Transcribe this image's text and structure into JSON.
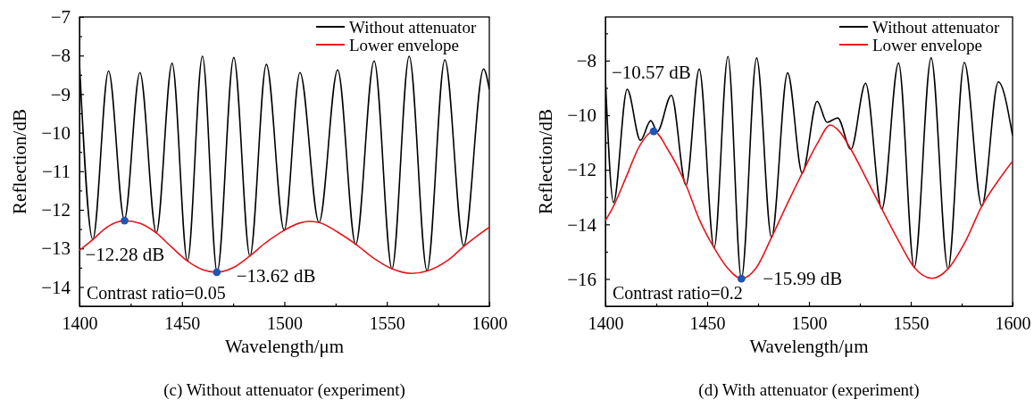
{
  "chart_data": [
    {
      "type": "line",
      "title": "(c) Without attenuator (experiment)",
      "xlabel": "Wavelength/μm",
      "ylabel": "Reflection/dB",
      "legend": "top right",
      "grid": false,
      "xlim": [
        1400,
        1600
      ],
      "xticks": [
        1400,
        {
          "value": 1425,
          "label": null
        },
        1450,
        {
          "value": 1475,
          "label": null
        },
        1500,
        {
          "value": 1525,
          "label": null
        },
        1550,
        {
          "value": 1575,
          "label": null
        },
        1600
      ],
      "ylim": [
        -14.5,
        -7
      ],
      "yticks": [
        {
          "value": -14.5,
          "label": null
        },
        -14,
        {
          "value": -13.5,
          "label": null
        },
        -13,
        {
          "value": -12.5,
          "label": null
        },
        -12,
        {
          "value": -11.5,
          "label": null
        },
        -11,
        {
          "value": -10.5,
          "label": null
        },
        -10,
        {
          "value": -9.5,
          "label": null
        },
        -9,
        {
          "value": -8.5,
          "label": null
        },
        -8,
        {
          "value": -7.5,
          "label": null
        },
        -7
      ],
      "series": [
        {
          "name": "Without attenuator",
          "color": "#000000",
          "x": [
            1400,
            1406.5,
            1414.2,
            1421.9,
            1429.5,
            1437.5,
            1445.2,
            1452.7,
            1460,
            1467.2,
            1475.3,
            1483.2,
            1491.2,
            1499.9,
            1507.6,
            1516.9,
            1526,
            1534.8,
            1543.8,
            1552.5,
            1560.9,
            1569.6,
            1578.3,
            1587.5,
            1597.2,
            1600
          ],
          "values": [
            -8.2,
            -12.77,
            -8.4,
            -12.25,
            -8.44,
            -12.6,
            -8.2,
            -13.33,
            -8.02,
            -13.62,
            -8.05,
            -13.2,
            -8.23,
            -12.53,
            -8.44,
            -12.33,
            -8.37,
            -12.9,
            -8.14,
            -13.53,
            -8.02,
            -13.58,
            -8.11,
            -12.93,
            -8.35,
            -8.88
          ]
        },
        {
          "name": "Lower envelope",
          "color": "#e8141c",
          "x": [
            1400,
            1406.5,
            1414,
            1422,
            1430,
            1437.5,
            1445,
            1452.7,
            1460,
            1467,
            1475,
            1483,
            1491,
            1500,
            1507,
            1512,
            1517,
            1526,
            1535,
            1544,
            1552.5,
            1562,
            1570,
            1580,
            1588,
            1594,
            1600
          ],
          "values": [
            -13.05,
            -12.77,
            -12.43,
            -12.28,
            -12.36,
            -12.6,
            -12.97,
            -13.33,
            -13.55,
            -13.62,
            -13.5,
            -13.2,
            -12.85,
            -12.53,
            -12.35,
            -12.3,
            -12.33,
            -12.58,
            -12.9,
            -13.27,
            -13.53,
            -13.65,
            -13.58,
            -13.3,
            -12.93,
            -12.68,
            -12.45
          ]
        },
        {
          "type": "scatter",
          "marker": "circle",
          "color": "#1f55b4",
          "x": [
            1422,
            1467
          ],
          "values": [
            -12.28,
            -13.62
          ]
        }
      ],
      "annotations": [
        {
          "text": "−12.28 dB",
          "x": 1422,
          "y": -12.28
        },
        {
          "text": "−13.62 dB",
          "x": 1467,
          "y": -13.62
        },
        "Contrast ratio=0.05"
      ]
    },
    {
      "type": "line",
      "title": "(d) With attenuator (experiment)",
      "xlabel": "Wavelength/μm",
      "ylabel": "Reflection/dB",
      "legend": "top right",
      "grid": false,
      "xlim": [
        1400,
        1600
      ],
      "xticks": [
        1400,
        {
          "value": 1425,
          "label": null
        },
        1450,
        {
          "value": 1475,
          "label": null
        },
        1500,
        {
          "value": 1525,
          "label": null
        },
        1550,
        {
          "value": 1575,
          "label": null
        },
        1600
      ],
      "ylim": [
        -17,
        -6.4
      ],
      "yticks": [
        {
          "value": -17,
          "label": null
        },
        -16,
        {
          "value": -15,
          "label": null
        },
        -14,
        {
          "value": -13,
          "label": null
        },
        -12,
        {
          "value": -11,
          "label": null
        },
        -10,
        {
          "value": -9,
          "label": null
        },
        -8,
        {
          "value": -7,
          "label": null
        }
      ],
      "series": [
        {
          "name": "Without attenuator",
          "color": "#000000",
          "x": [
            1400,
            1404,
            1410.7,
            1417.2,
            1422.3,
            1425.5,
            1432.4,
            1439.6,
            1446.1,
            1453.4,
            1460.2,
            1466.8,
            1474.3,
            1481.6,
            1489.5,
            1496.7,
            1504,
            1508.9,
            1514.1,
            1520.6,
            1527.8,
            1535.8,
            1544,
            1551.7,
            1560,
            1568.3,
            1576.3,
            1584.9,
            1593,
            1600
          ],
          "values": [
            -8.66,
            -13.2,
            -9.05,
            -10.92,
            -10.2,
            -10.6,
            -9.27,
            -12.56,
            -8.31,
            -14.86,
            -7.85,
            -15.99,
            -7.9,
            -14.48,
            -8.45,
            -12.12,
            -9.49,
            -10.26,
            -10.1,
            -11.25,
            -8.83,
            -13.44,
            -8.09,
            -15.58,
            -7.9,
            -15.63,
            -8.07,
            -13.33,
            -8.78,
            -10.75
          ]
        },
        {
          "name": "Lower envelope",
          "color": "#e8141c",
          "x": [
            1400,
            1404,
            1410,
            1417,
            1423.7,
            1431,
            1439.6,
            1446,
            1453.4,
            1460,
            1466.8,
            1474,
            1481.6,
            1489,
            1496.7,
            1504,
            1510.5,
            1515,
            1520.6,
            1528,
            1535.8,
            1544,
            1551.7,
            1560.4,
            1568.3,
            1577,
            1584.9,
            1592,
            1600
          ],
          "values": [
            -13.86,
            -13.33,
            -12.3,
            -11.1,
            -10.59,
            -11.3,
            -12.56,
            -13.8,
            -14.86,
            -15.6,
            -15.99,
            -15.6,
            -14.48,
            -13.3,
            -12.12,
            -11.05,
            -10.36,
            -10.6,
            -11.25,
            -12.3,
            -13.44,
            -14.6,
            -15.58,
            -15.98,
            -15.63,
            -14.6,
            -13.33,
            -12.5,
            -11.68
          ]
        },
        {
          "type": "scatter",
          "marker": "circle",
          "color": "#1f55b4",
          "x": [
            1423.7,
            1466.8
          ],
          "values": [
            -10.59,
            -15.99
          ]
        }
      ],
      "annotations": [
        {
          "text": "−10.57 dB",
          "x": 1423.7,
          "y": -10.59
        },
        {
          "text": "−15.99 dB",
          "x": 1466.8,
          "y": -15.99
        },
        "Contrast ratio=0.2"
      ]
    }
  ]
}
